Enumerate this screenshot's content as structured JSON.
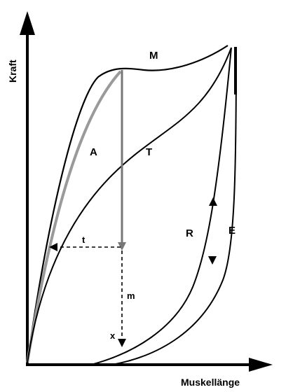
{
  "axes": {
    "y_label": "Kraft",
    "x_label": "Muskellänge"
  },
  "labels": {
    "M": "M",
    "A": "A",
    "T": "T",
    "R": "R",
    "E": "E",
    "t": "t",
    "m": "m",
    "x": "x"
  },
  "colors": {
    "line": "#000000",
    "gray_curve": "#9a9a9a",
    "vertical_line": "#777777",
    "background": "#ffffff"
  }
}
